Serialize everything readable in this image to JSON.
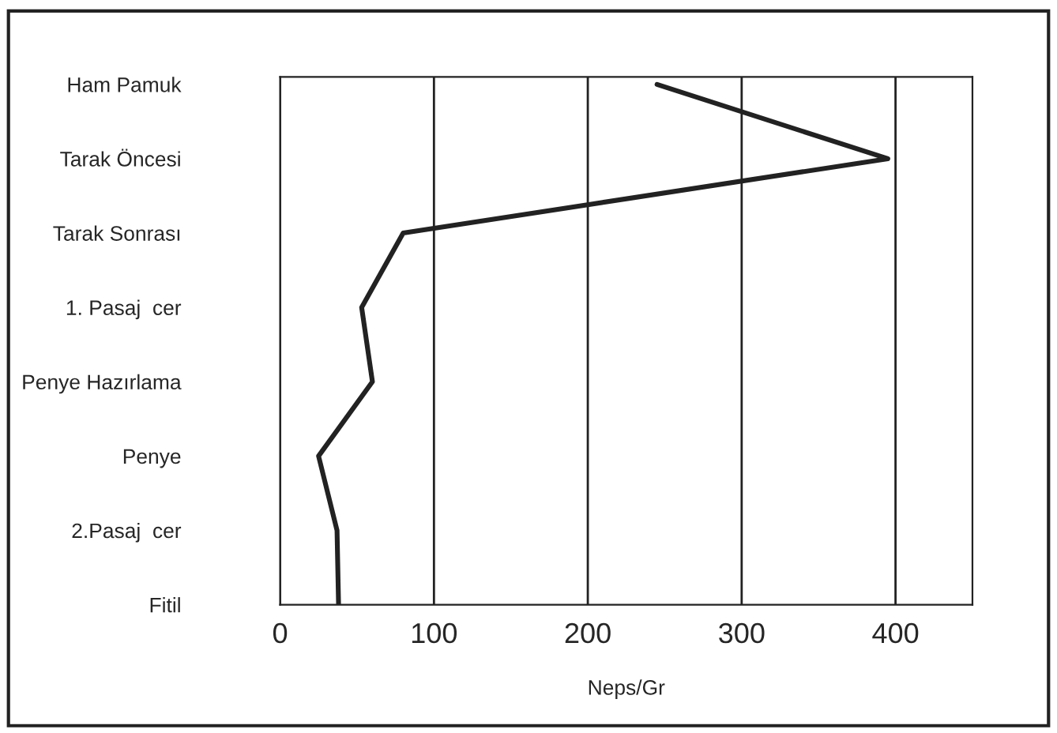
{
  "chart_data": {
    "type": "line",
    "orientation": "horizontal",
    "xlabel": "Neps/Gr",
    "categories": [
      "Ham Pamuk",
      "Tarak Öncesi",
      "Tarak Sonrası",
      "1. Pasaj  cer",
      "Penye Hazırlama",
      "Penye",
      "2.Pasaj  cer",
      "Fitil"
    ],
    "series": [
      {
        "color": "#222222",
        "values": [
          245,
          395,
          80,
          53,
          60,
          25,
          37,
          38
        ]
      }
    ],
    "xlim": [
      0,
      450
    ],
    "xticks": [
      0,
      100,
      200,
      300,
      400
    ],
    "grid": "x",
    "legend": false,
    "marker": "none",
    "line_style": "solid"
  }
}
